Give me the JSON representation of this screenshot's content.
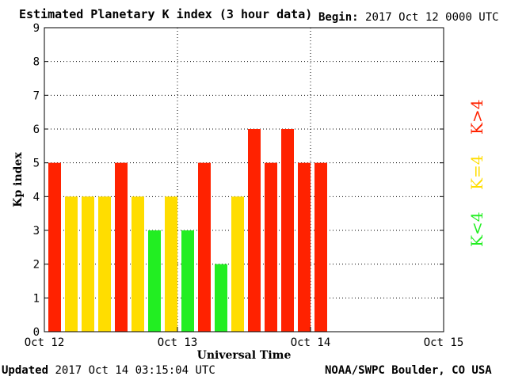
{
  "header": {
    "title": "Estimated Planetary K index (3 hour data)",
    "begin_label": "Begin:",
    "begin_value": "2017 Oct 12 0000 UTC"
  },
  "footer": {
    "updated_label": "Updated",
    "updated_value": "2017 Oct 14 03:15:04 UTC",
    "credit": "NOAA/SWPC Boulder, CO USA"
  },
  "legend": {
    "high": "K>4",
    "equal": "K=4",
    "low": "K<4"
  },
  "colors": {
    "high": "#ff2200",
    "equal": "#ffdd00",
    "low": "#22ee22"
  },
  "chart_data": {
    "type": "bar",
    "title": "Estimated Planetary K index (3 hour data)",
    "xlabel": "Universal Time",
    "ylabel": "Kp index",
    "ylim": [
      0,
      9
    ],
    "yticks": [
      "0",
      "1",
      "2",
      "3",
      "4",
      "5",
      "6",
      "7",
      "8",
      "9"
    ],
    "xticks": [
      "Oct 12",
      "Oct 13",
      "Oct 14",
      "Oct 15"
    ],
    "grid": true,
    "values": [
      5,
      4,
      4,
      4,
      5,
      4,
      3,
      4,
      3,
      5,
      2,
      4,
      6,
      5,
      6,
      5,
      5
    ]
  }
}
